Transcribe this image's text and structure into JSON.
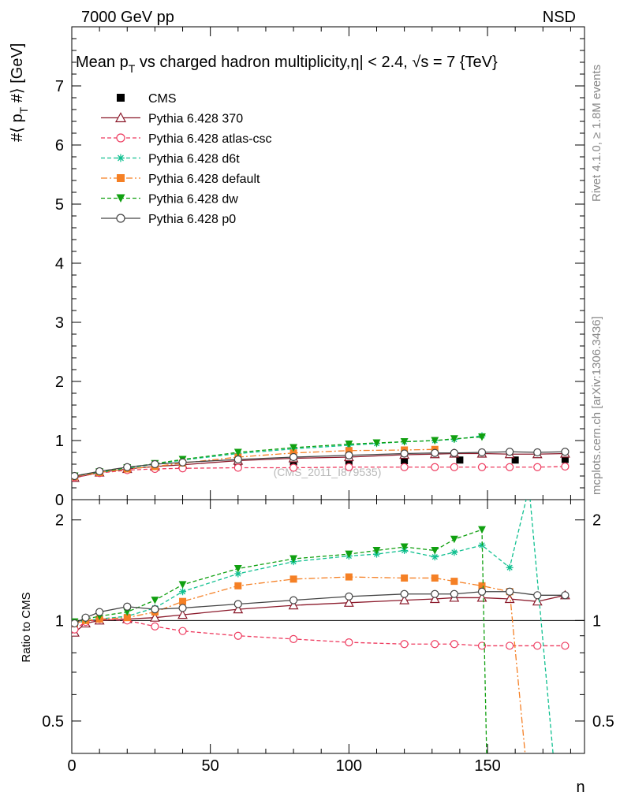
{
  "header": {
    "left": "7000 GeV pp",
    "right": "NSD",
    "side_top": "Rivet 4.1.0, ≥ 1.8M events",
    "side_bottom": "mcplots.cern.ch [arXiv:1306.3436]",
    "watermark": "(CMS_2011_I879535)"
  },
  "chart_data": [
    {
      "type": "line",
      "panel": "main",
      "title": "Mean p_T vs charged hadron multiplicity, |η| < 2.4, √s = 7 {TeV}",
      "title_parts": {
        "a": "Mean p",
        "sub": "T",
        "b": " vs charged hadron multiplicity,",
        "c": "η| < 2.4, √s = 7 {TeV}"
      },
      "ylabel_parts": {
        "a": "#⟨ p",
        "sub": "T",
        "b": " #⟩ [GeV]"
      },
      "xlabel": "n",
      "xlim": [
        0,
        185
      ],
      "ylim": [
        0,
        8
      ],
      "yticks": [
        0,
        1,
        2,
        3,
        4,
        5,
        6,
        7
      ],
      "xticks": [
        0,
        50,
        100,
        150
      ],
      "legend": [
        {
          "label": "CMS",
          "color": "#000000",
          "marker": "square-filled",
          "dash": "none"
        },
        {
          "label": "Pythia 6.428 370",
          "color": "#8b1a2b",
          "marker": "triangle-open",
          "dash": "solid"
        },
        {
          "label": "Pythia 6.428 atlas-csc",
          "color": "#ee3b5f",
          "marker": "circle-open",
          "dash": "dashed"
        },
        {
          "label": "Pythia 6.428 d6t",
          "color": "#10c090",
          "marker": "star",
          "dash": "dashed"
        },
        {
          "label": "Pythia 6.428 default",
          "color": "#f58025",
          "marker": "square-filled",
          "dash": "dashdot"
        },
        {
          "label": "Pythia 6.428 dw",
          "color": "#10a010",
          "marker": "triangle-down-filled",
          "dash": "dashed"
        },
        {
          "label": "Pythia 6.428 p0",
          "color": "#444444",
          "marker": "circle-open",
          "dash": "solid"
        }
      ],
      "series": [
        {
          "name": "CMS",
          "x": [
            1,
            10,
            20,
            30,
            40,
            60,
            80,
            100,
            120,
            140,
            160,
            178
          ],
          "y": [
            0.4,
            0.46,
            0.52,
            0.56,
            0.59,
            0.62,
            0.64,
            0.65,
            0.66,
            0.67,
            0.67,
            0.68
          ]
        },
        {
          "name": "Pythia 6.428 370",
          "x": [
            1,
            10,
            20,
            30,
            40,
            60,
            80,
            100,
            120,
            131,
            138,
            148,
            158,
            168,
            178
          ],
          "y": [
            0.37,
            0.46,
            0.52,
            0.56,
            0.59,
            0.66,
            0.7,
            0.72,
            0.76,
            0.77,
            0.78,
            0.78,
            0.77,
            0.77,
            0.78
          ]
        },
        {
          "name": "Pythia 6.428 atlas-csc",
          "x": [
            1,
            10,
            20,
            30,
            40,
            60,
            80,
            100,
            120,
            131,
            138,
            148,
            158,
            168,
            178
          ],
          "y": [
            0.38,
            0.45,
            0.5,
            0.52,
            0.53,
            0.54,
            0.54,
            0.55,
            0.55,
            0.55,
            0.55,
            0.55,
            0.55,
            0.55,
            0.56
          ]
        },
        {
          "name": "Pythia 6.428 d6t",
          "x": [
            1,
            10,
            20,
            30,
            40,
            60,
            80,
            100,
            110,
            120,
            131,
            138,
            148
          ],
          "y": [
            0.4,
            0.46,
            0.53,
            0.6,
            0.67,
            0.78,
            0.86,
            0.92,
            0.95,
            0.98,
            1.0,
            1.02,
            1.08
          ]
        },
        {
          "name": "Pythia 6.428 default",
          "x": [
            1,
            10,
            20,
            30,
            40,
            60,
            80,
            100,
            120,
            131
          ],
          "y": [
            0.39,
            0.46,
            0.52,
            0.56,
            0.62,
            0.72,
            0.79,
            0.83,
            0.84,
            0.85
          ]
        },
        {
          "name": "Pythia 6.428 dw",
          "x": [
            1,
            10,
            20,
            30,
            40,
            60,
            80,
            100,
            110,
            120,
            131,
            138,
            148
          ],
          "y": [
            0.4,
            0.47,
            0.54,
            0.61,
            0.68,
            0.8,
            0.88,
            0.94,
            0.96,
            0.98,
            1.0,
            1.03,
            1.06
          ]
        },
        {
          "name": "Pythia 6.428 p0",
          "x": [
            1,
            10,
            20,
            30,
            40,
            60,
            80,
            100,
            120,
            131,
            138,
            148,
            158,
            168,
            178
          ],
          "y": [
            0.4,
            0.48,
            0.55,
            0.6,
            0.63,
            0.68,
            0.72,
            0.75,
            0.78,
            0.79,
            0.79,
            0.8,
            0.81,
            0.8,
            0.81
          ]
        }
      ]
    },
    {
      "type": "line",
      "panel": "ratio",
      "ylabel": "Ratio to CMS",
      "xlabel": "n",
      "xlim": [
        0,
        185
      ],
      "ylim": [
        0.4,
        2.3
      ],
      "yscale": "log",
      "yticks": [
        0.5,
        1,
        2
      ],
      "ytick_labels": [
        "0.5",
        "1",
        "2"
      ],
      "xticks": [
        0,
        50,
        100,
        150
      ],
      "xtick_labels": [
        "0",
        "50",
        "100",
        "150"
      ],
      "series": [
        {
          "name": "Pythia 6.428 370",
          "x": [
            1,
            5,
            10,
            20,
            30,
            40,
            60,
            80,
            100,
            120,
            131,
            138,
            148,
            158,
            168,
            178
          ],
          "y": [
            0.92,
            0.98,
            1.0,
            1.01,
            1.02,
            1.04,
            1.08,
            1.11,
            1.13,
            1.15,
            1.16,
            1.17,
            1.17,
            1.16,
            1.14,
            1.19
          ]
        },
        {
          "name": "Pythia 6.428 atlas-csc",
          "x": [
            1,
            5,
            10,
            20,
            30,
            40,
            60,
            80,
            100,
            120,
            131,
            138,
            148,
            158,
            168,
            178
          ],
          "y": [
            0.94,
            0.99,
            1.01,
            1.0,
            0.96,
            0.93,
            0.9,
            0.88,
            0.86,
            0.85,
            0.85,
            0.85,
            0.84,
            0.84,
            0.84,
            0.84
          ]
        },
        {
          "name": "Pythia 6.428 d6t",
          "x": [
            1,
            5,
            10,
            20,
            30,
            40,
            60,
            80,
            100,
            110,
            120,
            131,
            138,
            148,
            158,
            165,
            175
          ],
          "y": [
            0.98,
            1.0,
            1.01,
            1.03,
            1.09,
            1.22,
            1.38,
            1.5,
            1.56,
            1.58,
            1.62,
            1.55,
            1.6,
            1.68,
            1.44,
            2.5,
            0.3
          ]
        },
        {
          "name": "Pythia 6.428 default",
          "x": [
            1,
            5,
            10,
            20,
            30,
            40,
            60,
            80,
            100,
            120,
            131,
            138,
            148,
            158,
            165
          ],
          "y": [
            0.98,
            1.0,
            1.01,
            1.02,
            1.06,
            1.14,
            1.27,
            1.33,
            1.35,
            1.34,
            1.34,
            1.31,
            1.27,
            1.22,
            0.3
          ]
        },
        {
          "name": "Pythia 6.428 dw",
          "x": [
            1,
            5,
            10,
            20,
            30,
            40,
            60,
            80,
            100,
            110,
            120,
            131,
            138,
            148,
            150
          ],
          "y": [
            0.99,
            1.01,
            1.03,
            1.06,
            1.15,
            1.28,
            1.43,
            1.53,
            1.58,
            1.62,
            1.66,
            1.62,
            1.75,
            1.87,
            0.3
          ]
        },
        {
          "name": "Pythia 6.428 p0",
          "x": [
            1,
            5,
            10,
            20,
            30,
            40,
            60,
            80,
            100,
            120,
            131,
            138,
            148,
            158,
            168,
            178
          ],
          "y": [
            0.98,
            1.02,
            1.06,
            1.1,
            1.08,
            1.09,
            1.12,
            1.15,
            1.18,
            1.2,
            1.2,
            1.2,
            1.22,
            1.22,
            1.19,
            1.19
          ]
        }
      ]
    }
  ]
}
